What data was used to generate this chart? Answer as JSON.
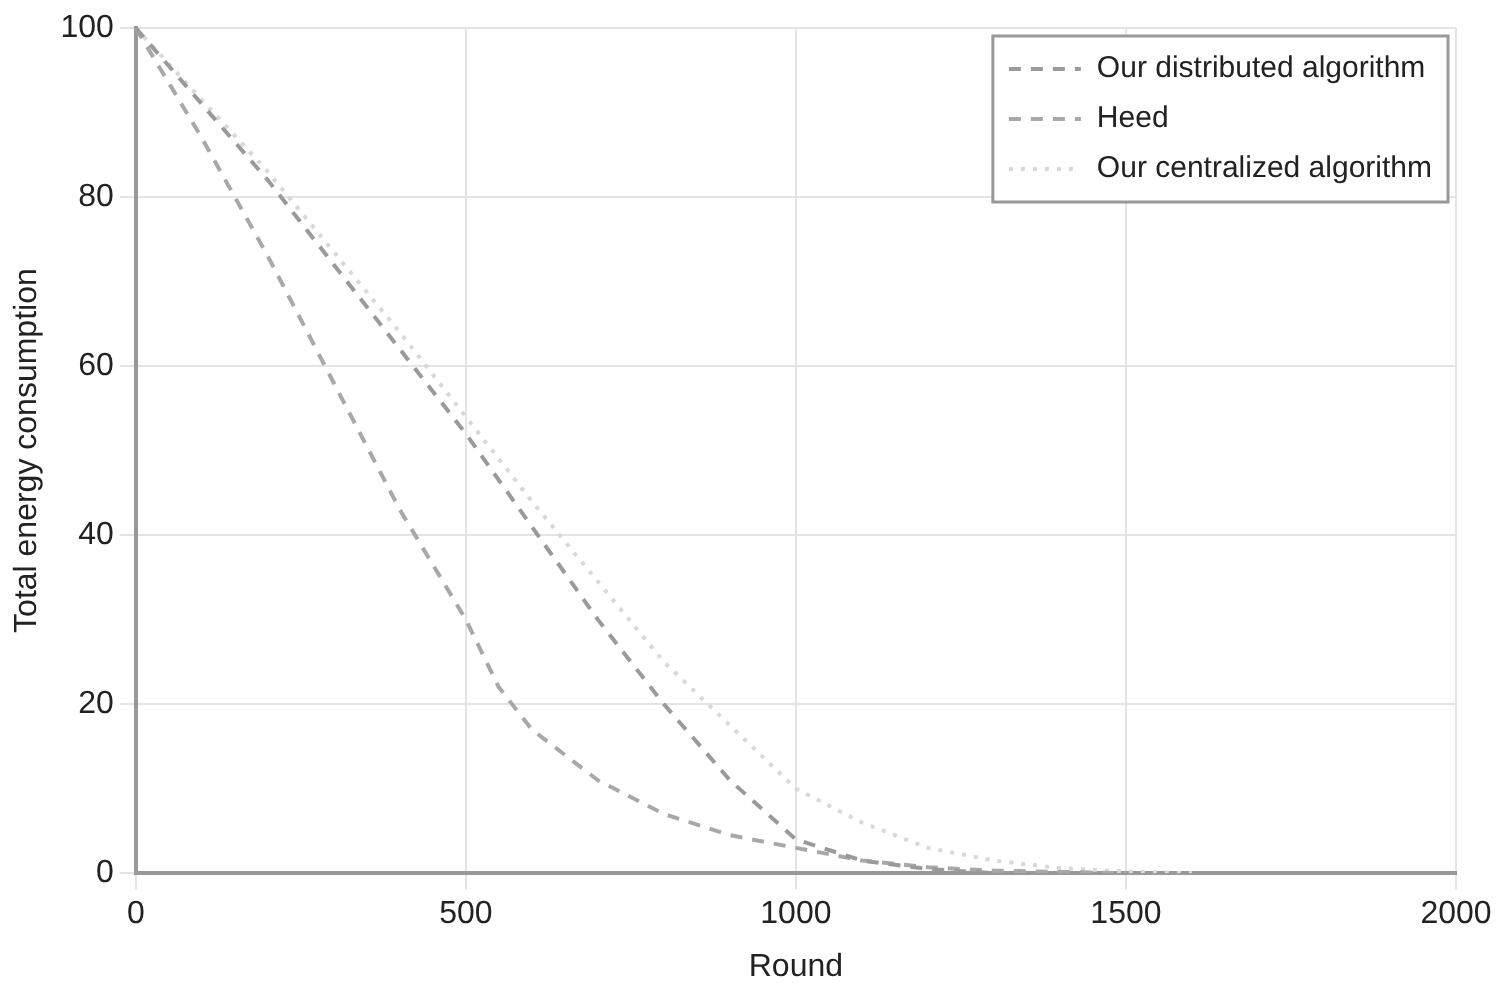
{
  "chart_data": {
    "type": "line",
    "xlabel": "Round",
    "ylabel": "Total energy consumption",
    "xlim": [
      0,
      2000
    ],
    "xticks": [
      0,
      500,
      1000,
      1500,
      2000
    ],
    "ylim": [
      0,
      100
    ],
    "yticks": [
      0,
      20,
      40,
      60,
      80,
      100
    ],
    "grid": true,
    "legend": "top right",
    "marker": "none",
    "series": [
      {
        "name": "Our distributed algorithm",
        "color": "#9a9a9a",
        "line_style": "dashed",
        "x": [
          0,
          100,
          200,
          300,
          400,
          500,
          600,
          700,
          800,
          900,
          1000,
          1100,
          1200,
          1300
        ],
        "values": [
          100,
          91,
          82,
          72,
          62,
          52,
          41,
          30,
          20,
          11,
          4,
          1.5,
          0.5,
          0
        ]
      },
      {
        "name": "Heed",
        "color": "#a8a8a8",
        "line_style": "dashed",
        "x": [
          0,
          100,
          200,
          300,
          400,
          500,
          550,
          600,
          700,
          800,
          900,
          1000,
          1100,
          1200,
          1300,
          1500
        ],
        "values": [
          100,
          87,
          73,
          58,
          43,
          30,
          22,
          17,
          11,
          7,
          4.5,
          3,
          1.5,
          0.7,
          0.3,
          0
        ]
      },
      {
        "name": "Our centralized algorithm",
        "color": "#d8d8d8",
        "line_style": "dotted",
        "x": [
          0,
          200,
          400,
          600,
          800,
          1000,
          1100,
          1200,
          1300,
          1400,
          1500,
          1600
        ],
        "values": [
          100,
          83,
          64,
          44,
          25,
          10,
          6,
          3,
          1.5,
          0.6,
          0.2,
          0
        ]
      }
    ]
  }
}
